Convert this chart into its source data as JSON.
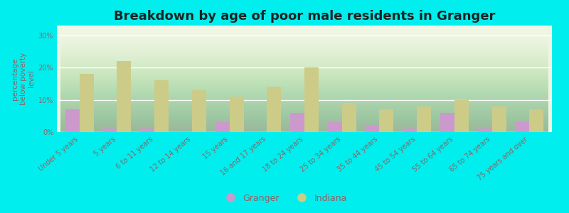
{
  "title": "Breakdown by age of poor male residents in Granger",
  "ylabel": "percentage\nbelow poverty\nlevel",
  "categories": [
    "Under 5 years",
    "5 years",
    "6 to 11 years",
    "12 to 14 years",
    "15 years",
    "16 and 17 years",
    "18 to 24 years",
    "25 to 34 years",
    "35 to 44 years",
    "45 to 54 years",
    "55 to 64 years",
    "65 to 74 years",
    "75 years and over"
  ],
  "granger": [
    7.0,
    1.0,
    1.0,
    0.0,
    3.0,
    0.0,
    6.0,
    3.0,
    2.0,
    1.0,
    6.0,
    1.0,
    3.0
  ],
  "indiana": [
    18.0,
    22.0,
    16.0,
    13.0,
    11.0,
    14.0,
    20.0,
    9.0,
    7.0,
    8.0,
    10.0,
    8.0,
    7.0
  ],
  "granger_color": "#cc99cc",
  "indiana_color": "#cccc88",
  "outer_bg": "#00eeee",
  "title_color": "#222222",
  "axis_label_color": "#886666",
  "tick_label_color": "#886666",
  "ylim": [
    0,
    33
  ],
  "yticks": [
    0,
    10,
    20,
    30
  ],
  "ytick_labels": [
    "0%",
    "10%",
    "20%",
    "30%"
  ],
  "title_fontsize": 13,
  "axis_label_fontsize": 7.5,
  "tick_fontsize": 7,
  "legend_fontsize": 9,
  "bar_width": 0.38
}
